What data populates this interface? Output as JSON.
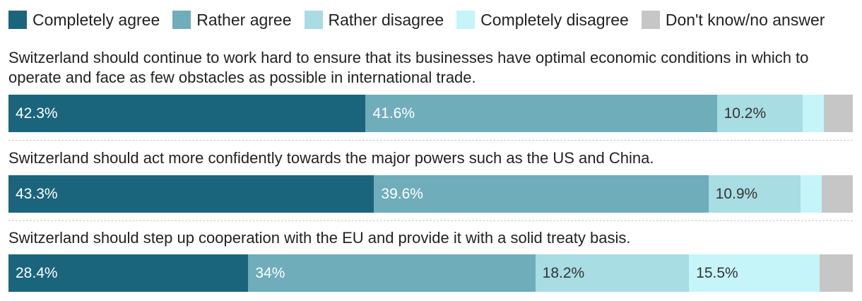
{
  "chart_data": {
    "type": "bar",
    "orientation": "horizontal",
    "stacked": true,
    "xlim": [
      0,
      100
    ],
    "grid": false,
    "legend_placement": "top",
    "series": [
      {
        "name": "Completely agree",
        "color": "#1b657c",
        "label_color": "#ffffff"
      },
      {
        "name": "Rather agree",
        "color": "#6fadbb",
        "label_color": "#ffffff"
      },
      {
        "name": "Rather disagree",
        "color": "#a7dde3",
        "label_color": "#333333"
      },
      {
        "name": "Completely disagree",
        "color": "#c5f5f8",
        "label_color": "#333333"
      },
      {
        "name": "Don't know/no answer",
        "color": "#c6c6c6",
        "label_color": "#333333"
      }
    ],
    "rows": [
      {
        "question": "Switzerland should continue to work hard to ensure that its businesses have optimal economic conditions in which to operate and face as few obstacles as possible in international trade.",
        "values": [
          42.3,
          41.6,
          10.2,
          2.5,
          3.4
        ],
        "labels": [
          "42.3%",
          "41.6%",
          "10.2%",
          "",
          ""
        ]
      },
      {
        "question": "Switzerland should act more confidently towards the major powers such as the US and China.",
        "values": [
          43.3,
          39.6,
          10.9,
          2.5,
          3.7
        ],
        "labels": [
          "43.3%",
          "39.6%",
          "10.9%",
          "",
          ""
        ]
      },
      {
        "question": "Switzerland should step up cooperation with the EU and provide it with a solid treaty basis.",
        "values": [
          28.4,
          34,
          18.2,
          15.5,
          3.9
        ],
        "labels": [
          "28.4%",
          "34%",
          "18.2%",
          "15.5%",
          ""
        ]
      }
    ]
  }
}
